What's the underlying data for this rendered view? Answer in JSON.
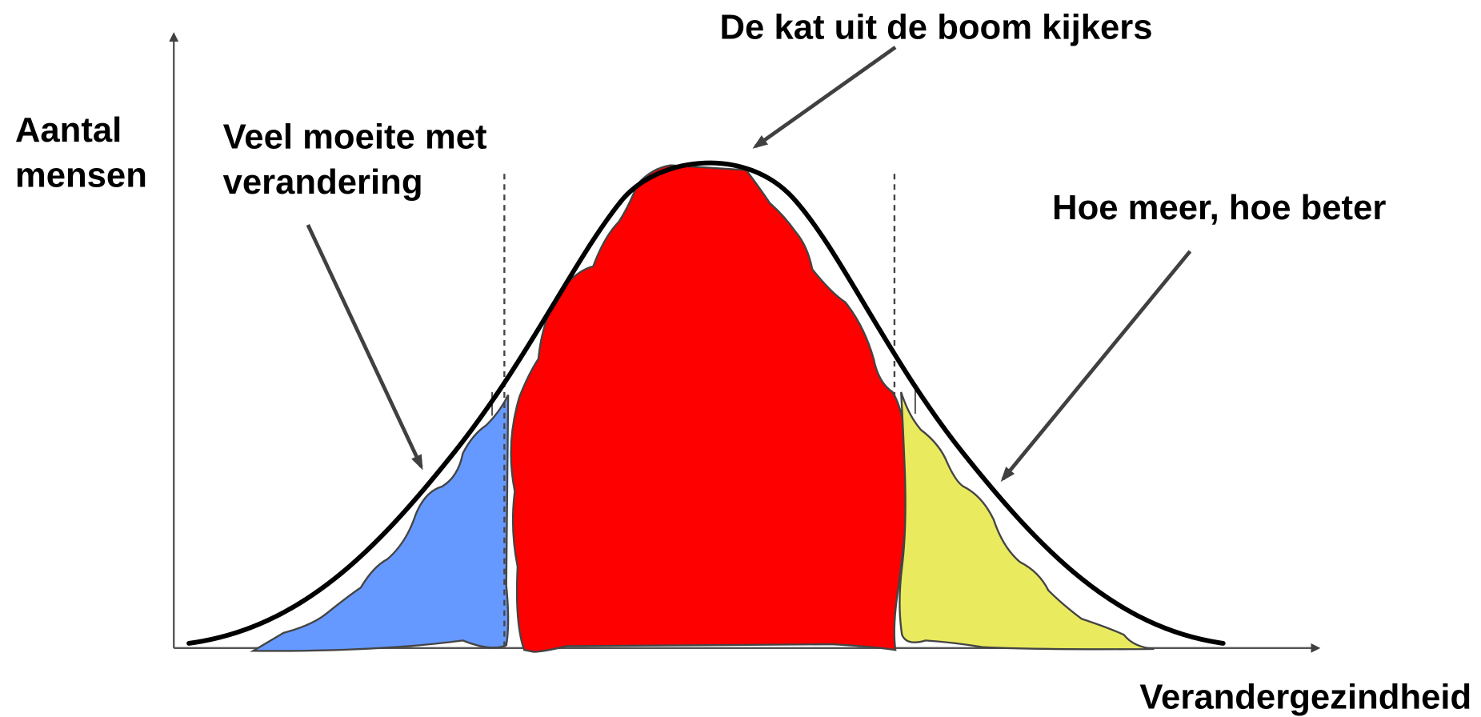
{
  "axes": {
    "y_label": [
      "Aantal",
      "mensen"
    ],
    "x_label": "Verandergezindheid"
  },
  "annotations": [
    {
      "lines": [
        "De kat uit de boom kijkers"
      ]
    },
    {
      "lines": [
        "Veel moeite met",
        "verandering"
      ]
    },
    {
      "lines": [
        "Hoe meer, hoe beter"
      ]
    }
  ]
}
